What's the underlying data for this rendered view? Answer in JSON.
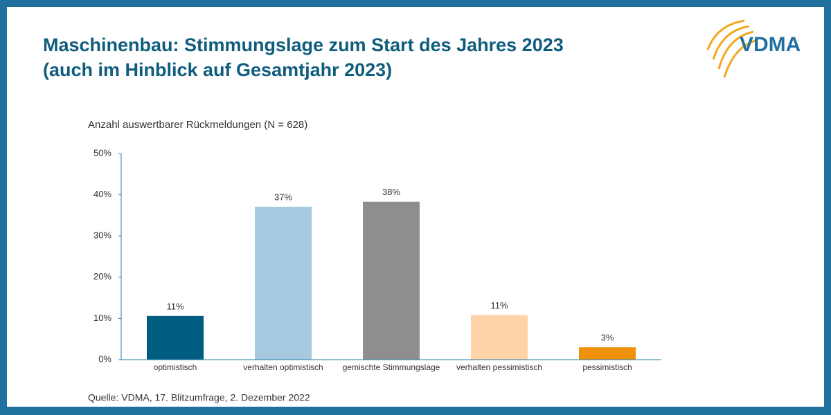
{
  "chart_data": {
    "type": "bar",
    "title": [
      "Maschinenbau: Stimmungslage zum Start des Jahres 2023",
      "(auch im Hinblick auf Gesamtjahr 2023)"
    ],
    "subtitle": "Anzahl auswertbarer Rückmeldungen (N = 628)",
    "source": "Quelle: VDMA, 17. Blitzumfrage, 2. Dezember 2022",
    "logo": "VDMA",
    "categories": [
      "optimistisch",
      "verhalten optimistisch",
      "gemischte Stimmungslage",
      "verhalten pessimistisch",
      "pessimistisch"
    ],
    "values": [
      10.6,
      37.1,
      38.3,
      10.8,
      3.0
    ],
    "value_labels": [
      "11%",
      "37%",
      "38%",
      "11%",
      "3%"
    ],
    "colors": [
      "#005d7f",
      "#a5c9df",
      "#8e8e8e",
      "#fdd3a7",
      "#ef910b"
    ],
    "ylim": [
      0,
      50
    ],
    "yticks": [
      {
        "value": 0,
        "label": "0%"
      },
      {
        "value": 10,
        "label": "10%"
      },
      {
        "value": 20,
        "label": "20%"
      },
      {
        "value": 30,
        "label": "30%"
      },
      {
        "value": 40,
        "label": "40%"
      },
      {
        "value": 50,
        "label": "50%"
      }
    ],
    "grid": false
  }
}
